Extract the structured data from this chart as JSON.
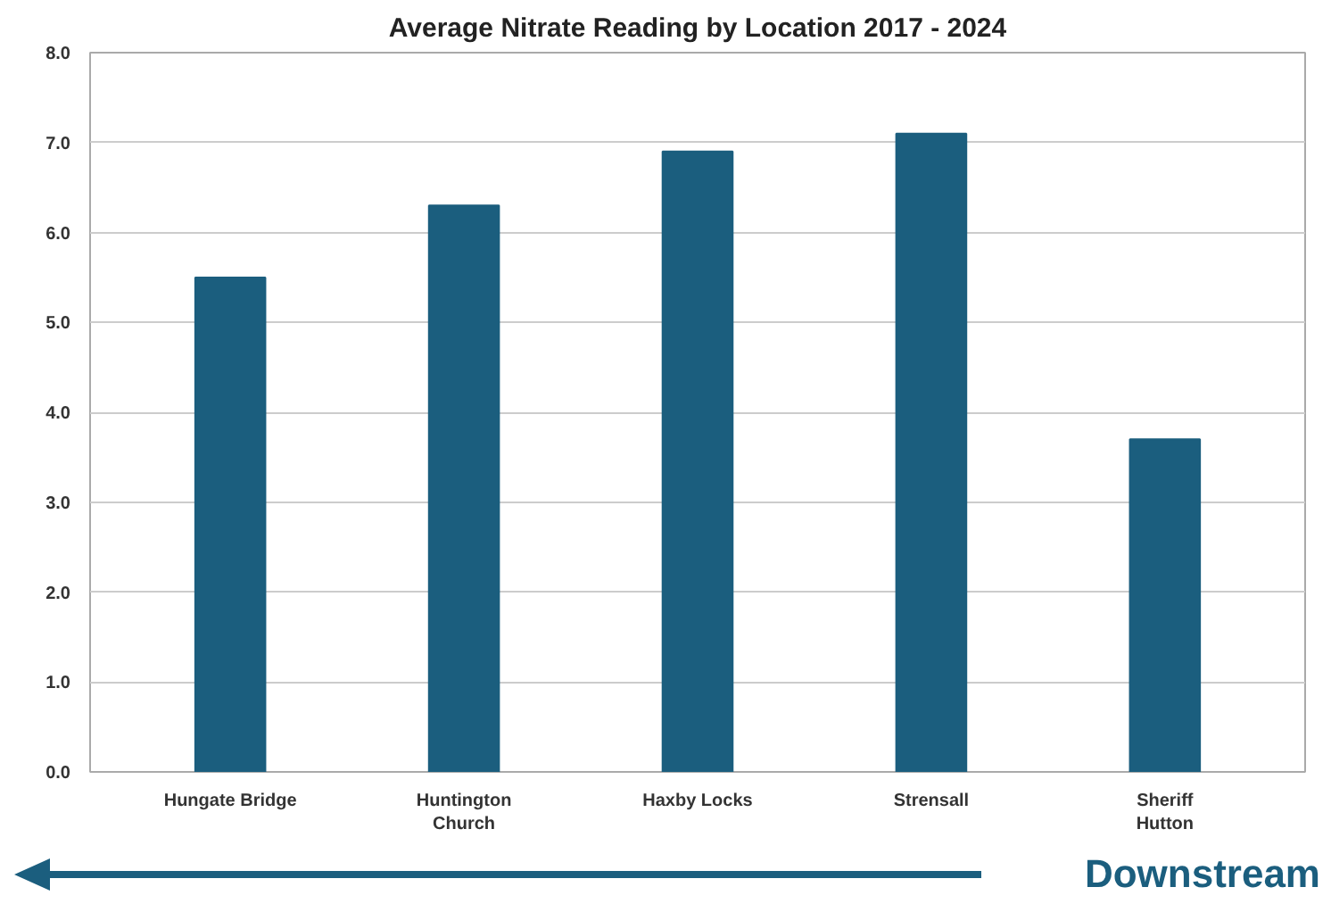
{
  "chart_data": {
    "type": "bar",
    "title": "Average Nitrate Reading by Location 2017 - 2024",
    "categories": [
      "Hungate Bridge",
      "Huntington\nChurch",
      "Haxby Locks",
      "Strensall",
      "Sheriff\nHutton"
    ],
    "values": [
      5.5,
      6.3,
      6.9,
      7.1,
      3.7
    ],
    "color": "#1b5e7e",
    "ylim": [
      0,
      8
    ],
    "yticks": [
      {
        "value": 0,
        "label": "0.0"
      },
      {
        "value": 1,
        "label": "1.0"
      },
      {
        "value": 2,
        "label": "2.0"
      },
      {
        "value": 3,
        "label": "3.0"
      },
      {
        "value": 4,
        "label": "4.0"
      },
      {
        "value": 5,
        "label": "5.0"
      },
      {
        "value": 6,
        "label": "6.0"
      },
      {
        "value": 7,
        "label": "7.0"
      },
      {
        "value": 8,
        "label": "8.0"
      }
    ],
    "grid": "y",
    "annotations": [
      "Downstream"
    ]
  }
}
